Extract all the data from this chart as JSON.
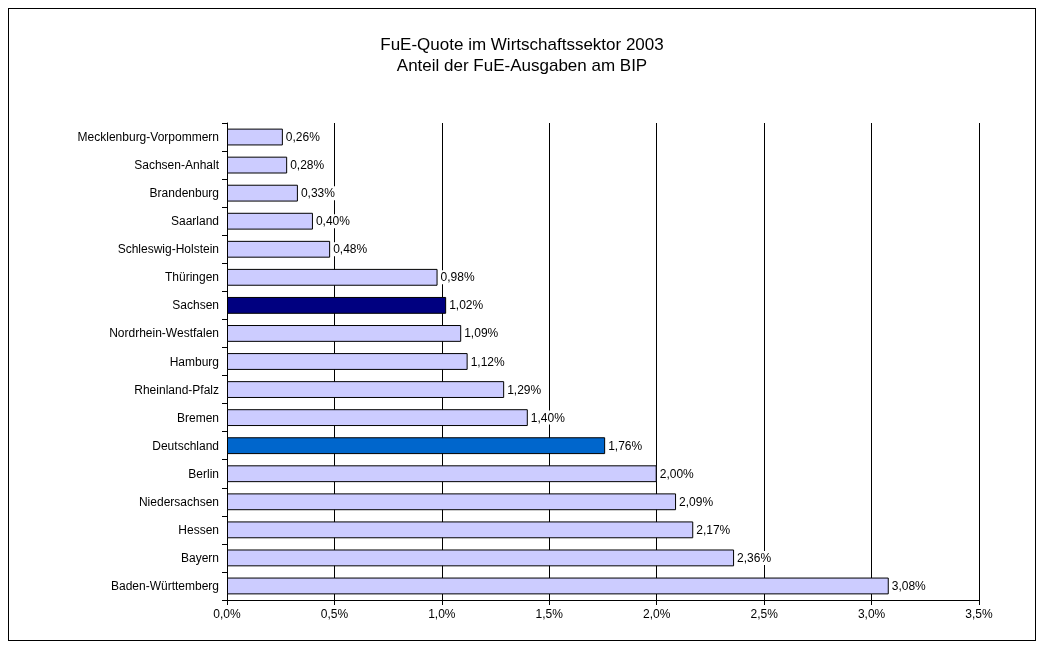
{
  "chart_data": {
    "type": "bar",
    "orientation": "horizontal",
    "title": "FuE-Quote im Wirtschaftssektor 2003",
    "subtitle": "Anteil der FuE-Ausgaben am BIP",
    "categories": [
      "Mecklenburg-Vorpommern",
      "Sachsen-Anhalt",
      "Brandenburg",
      "Saarland",
      "Schleswig-Holstein",
      "Thüringen",
      "Sachsen",
      "Nordrhein-Westfalen",
      "Hamburg",
      "Rheinland-Pfalz",
      "Bremen",
      "Deutschland",
      "Berlin",
      "Niedersachsen",
      "Hessen",
      "Bayern",
      "Baden-Württemberg"
    ],
    "values": [
      0.26,
      0.28,
      0.33,
      0.4,
      0.48,
      0.98,
      1.02,
      1.09,
      1.12,
      1.29,
      1.4,
      1.76,
      2.0,
      2.09,
      2.17,
      2.36,
      3.08
    ],
    "value_labels": [
      "0,26%",
      "0,28%",
      "0,33%",
      "0,40%",
      "0,48%",
      "0,98%",
      "1,02%",
      "1,09%",
      "1,12%",
      "1,29%",
      "1,40%",
      "1,76%",
      "2,00%",
      "2,09%",
      "2,17%",
      "2,36%",
      "3,08%"
    ],
    "colors": [
      "#ccccff",
      "#ccccff",
      "#ccccff",
      "#ccccff",
      "#ccccff",
      "#ccccff",
      "#000080",
      "#ccccff",
      "#ccccff",
      "#ccccff",
      "#ccccff",
      "#0066cc",
      "#ccccff",
      "#ccccff",
      "#ccccff",
      "#ccccff",
      "#ccccff"
    ],
    "xlim": [
      0,
      3.5
    ],
    "xticks": [
      {
        "value": 0,
        "label": "0,0%"
      },
      {
        "value": 0.5,
        "label": "0,5%"
      },
      {
        "value": 1,
        "label": "1,0%"
      },
      {
        "value": 1.5,
        "label": "1,5%"
      },
      {
        "value": 2,
        "label": "2,0%"
      },
      {
        "value": 2.5,
        "label": "2,5%"
      },
      {
        "value": 3,
        "label": "3,0%"
      },
      {
        "value": 3.5,
        "label": "3,5%"
      }
    ],
    "grid": "x"
  }
}
